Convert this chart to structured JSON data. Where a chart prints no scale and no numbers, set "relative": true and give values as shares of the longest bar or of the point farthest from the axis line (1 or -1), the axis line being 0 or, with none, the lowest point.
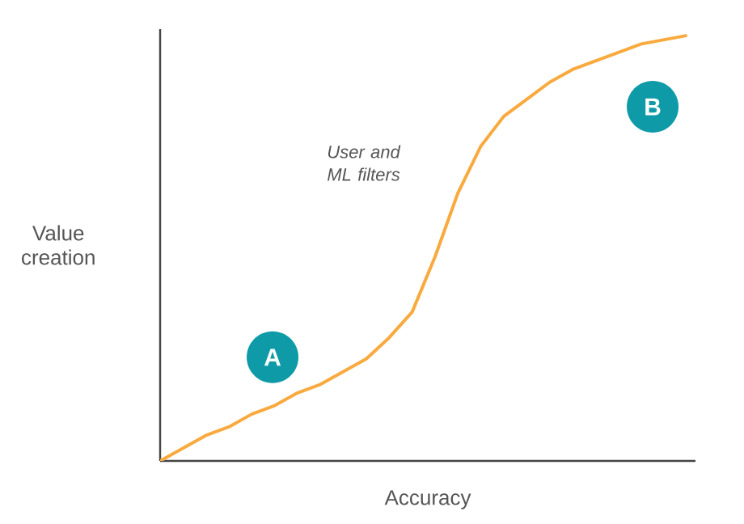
{
  "chart_data": {
    "type": "line",
    "relative": true,
    "xlabel": "Accuracy",
    "ylabel": "Value creation",
    "marker": "none",
    "line_style": "solid",
    "categories": [
      null,
      null,
      null,
      null,
      null,
      null,
      null,
      null,
      null,
      null,
      null,
      null,
      null,
      null,
      null,
      null,
      null,
      null,
      null,
      null,
      null,
      null,
      null,
      null
    ],
    "series": [
      {
        "color": "#f9aa3f",
        "values": [
          0,
          0.03,
          0.06,
          0.08,
          0.11,
          0.13,
          0.16,
          0.18,
          0.21,
          0.24,
          0.29,
          0.35,
          0.48,
          0.63,
          0.74,
          0.81,
          0.85,
          0.89,
          0.92,
          0.94,
          0.96,
          0.98,
          0.99,
          1.0
        ]
      }
    ],
    "annotations": [
      "A",
      "B",
      "User and ML filters"
    ]
  }
}
